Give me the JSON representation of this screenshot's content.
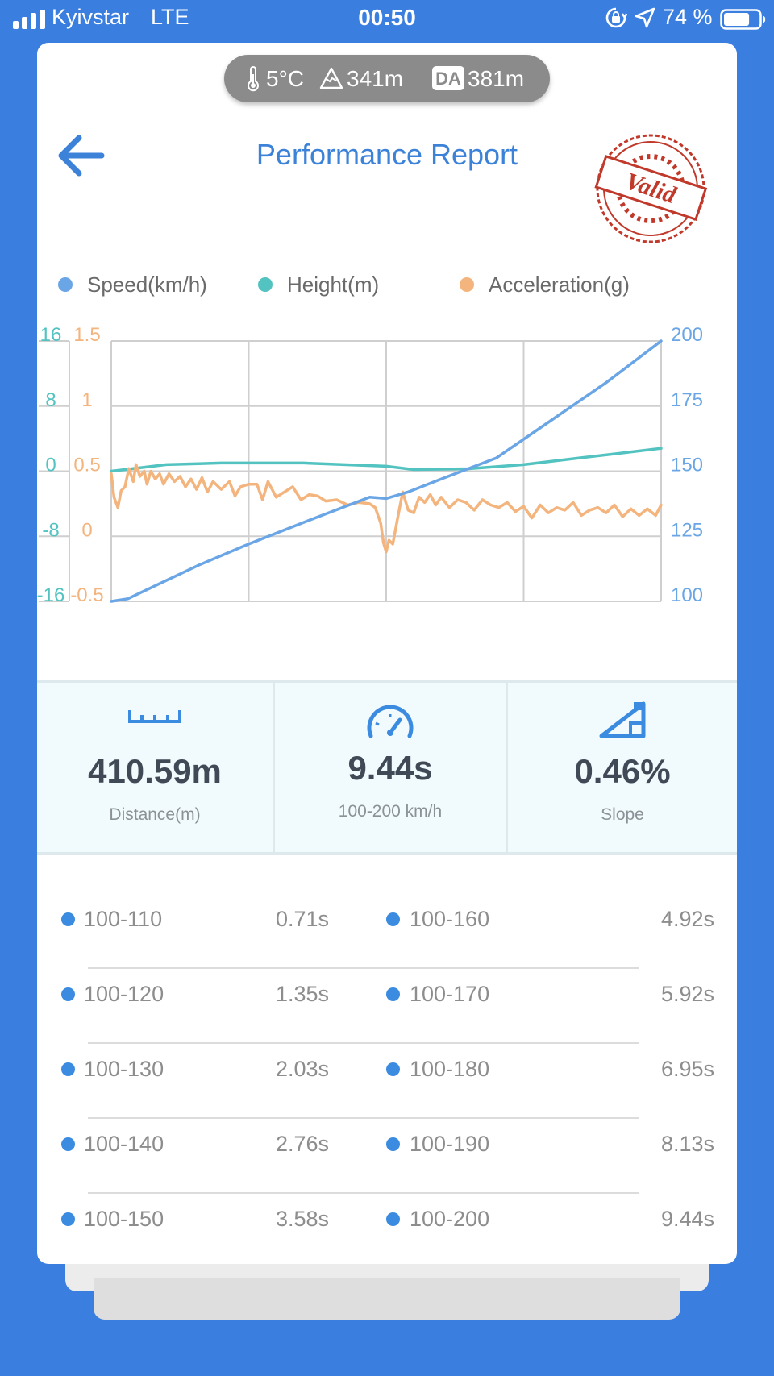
{
  "status": {
    "carrier": "Kyivstar",
    "network": "LTE",
    "time": "00:50",
    "battery_percent": "74 %",
    "battery_level": 0.74
  },
  "env": {
    "temperature": "5°C",
    "altitude": "341m",
    "da_badge": "DA",
    "density_altitude": "381m"
  },
  "header": {
    "title": "Performance Report",
    "stamp_text": "Valid"
  },
  "colors": {
    "accent": "#3b82d8",
    "speed": "#6aa5e6",
    "height": "#52c3c0",
    "acceleration": "#f3b47d",
    "stamp": "#c0392b"
  },
  "chart_data": {
    "type": "line",
    "legend": [
      "Speed(km/h)",
      "Height(m)",
      "Acceleration(g)"
    ],
    "legend_position": "top",
    "grid": true,
    "x_count": 4,
    "axes": {
      "height": {
        "ticks": [
          "16",
          "8",
          "0",
          "-8",
          "-16"
        ],
        "ylim": [
          -16,
          16
        ]
      },
      "acceleration": {
        "ticks": [
          "1.5",
          "1",
          "0.5",
          "0",
          "-0.5"
        ],
        "ylim": [
          -0.5,
          1.5
        ]
      },
      "speed": {
        "ticks": [
          "200",
          "175",
          "150",
          "125",
          "100"
        ],
        "ylim": [
          100,
          200
        ]
      }
    },
    "series": [
      {
        "name": "Speed(km/h)",
        "axis": "speed",
        "x": [
          0,
          0.03,
          0.08,
          0.16,
          0.25,
          0.34,
          0.42,
          0.47,
          0.5,
          0.54,
          0.6,
          0.7,
          0.8,
          0.9,
          1.0
        ],
        "values": [
          100,
          101,
          106,
          114,
          122,
          129.5,
          136,
          140,
          139.5,
          142,
          147,
          155,
          169.5,
          184,
          200
        ]
      },
      {
        "name": "Height(m)",
        "axis": "height",
        "x": [
          0,
          0.05,
          0.1,
          0.2,
          0.35,
          0.5,
          0.55,
          0.65,
          0.75,
          0.85,
          0.95,
          1.0
        ],
        "values": [
          0,
          0.4,
          0.8,
          1.0,
          1.0,
          0.6,
          0.2,
          0.3,
          0.8,
          1.6,
          2.4,
          2.8
        ]
      },
      {
        "name": "Acceleration(g)",
        "axis": "acceleration",
        "x": [
          0,
          0.005,
          0.012,
          0.018,
          0.025,
          0.032,
          0.04,
          0.045,
          0.052,
          0.06,
          0.065,
          0.072,
          0.08,
          0.088,
          0.095,
          0.105,
          0.115,
          0.125,
          0.135,
          0.145,
          0.155,
          0.165,
          0.175,
          0.185,
          0.2,
          0.215,
          0.225,
          0.235,
          0.25,
          0.265,
          0.275,
          0.285,
          0.3,
          0.315,
          0.33,
          0.345,
          0.36,
          0.375,
          0.39,
          0.41,
          0.43,
          0.45,
          0.47,
          0.48,
          0.49,
          0.495,
          0.5,
          0.505,
          0.512,
          0.52,
          0.53,
          0.54,
          0.55,
          0.56,
          0.57,
          0.58,
          0.59,
          0.6,
          0.615,
          0.63,
          0.645,
          0.66,
          0.675,
          0.69,
          0.705,
          0.72,
          0.735,
          0.75,
          0.765,
          0.78,
          0.795,
          0.81,
          0.825,
          0.84,
          0.855,
          0.87,
          0.885,
          0.9,
          0.915,
          0.93,
          0.945,
          0.96,
          0.975,
          0.99,
          1.0
        ],
        "values": [
          0.48,
          0.3,
          0.22,
          0.35,
          0.38,
          0.52,
          0.42,
          0.55,
          0.46,
          0.5,
          0.4,
          0.5,
          0.44,
          0.48,
          0.4,
          0.48,
          0.42,
          0.46,
          0.38,
          0.44,
          0.36,
          0.45,
          0.34,
          0.42,
          0.36,
          0.42,
          0.31,
          0.38,
          0.4,
          0.4,
          0.28,
          0.42,
          0.3,
          0.34,
          0.38,
          0.28,
          0.32,
          0.31,
          0.27,
          0.28,
          0.24,
          0.26,
          0.25,
          0.22,
          0.1,
          -0.05,
          -0.12,
          -0.03,
          -0.06,
          0.12,
          0.34,
          0.2,
          0.18,
          0.3,
          0.26,
          0.32,
          0.24,
          0.3,
          0.22,
          0.28,
          0.26,
          0.2,
          0.28,
          0.24,
          0.22,
          0.26,
          0.19,
          0.23,
          0.14,
          0.24,
          0.18,
          0.22,
          0.2,
          0.26,
          0.16,
          0.2,
          0.22,
          0.18,
          0.24,
          0.15,
          0.21,
          0.16,
          0.21,
          0.16,
          0.24
        ]
      }
    ]
  },
  "stats": [
    {
      "value": "410.59m",
      "label": "Distance(m)",
      "icon": "ruler-icon"
    },
    {
      "value": "9.44s",
      "label": "100-200 km/h",
      "icon": "speedometer-icon"
    },
    {
      "value": "0.46%",
      "label": "Slope",
      "icon": "slope-icon"
    }
  ],
  "splits": [
    {
      "left": {
        "range": "100-110",
        "time": "0.71s"
      },
      "right": {
        "range": "100-160",
        "time": "4.92s"
      }
    },
    {
      "left": {
        "range": "100-120",
        "time": "1.35s"
      },
      "right": {
        "range": "100-170",
        "time": "5.92s"
      }
    },
    {
      "left": {
        "range": "100-130",
        "time": "2.03s"
      },
      "right": {
        "range": "100-180",
        "time": "6.95s"
      }
    },
    {
      "left": {
        "range": "100-140",
        "time": "2.76s"
      },
      "right": {
        "range": "100-190",
        "time": "8.13s"
      }
    },
    {
      "left": {
        "range": "100-150",
        "time": "3.58s"
      },
      "right": {
        "range": "100-200",
        "time": "9.44s"
      }
    }
  ]
}
